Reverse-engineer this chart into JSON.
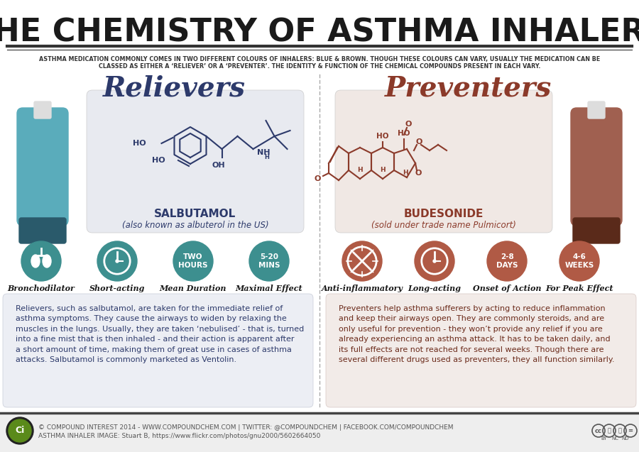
{
  "title": "THE CHEMISTRY OF ASTHMA INHALERS",
  "subtitle_line1": "ASTHMA MEDICATION COMMONLY COMES IN TWO DIFFERENT COLOURS OF INHALERS: BLUE & BROWN. THOUGH THESE COLOURS CAN VARY, USUALLY THE MEDICATION CAN BE",
  "subtitle_line2": "CLASSED AS EITHER A ‘RELIEVER’ OR A ‘PREVENTER’. THE IDENTITY & FUNCTION OF THE CHEMICAL COMPOUNDS PRESENT IN EACH VARY.",
  "bg_color": "#ffffff",
  "title_color": "#1a1a1a",
  "left_heading": "Relievers",
  "right_heading": "Preventers",
  "left_heading_color": "#2d3a6b",
  "right_heading_color": "#8b3a2a",
  "left_box_bg": "#e8eaf0",
  "right_box_bg": "#f0e8e4",
  "left_compound": "SALBUTAMOL",
  "left_compound_sub": "(also known as albuterol in the US)",
  "right_compound": "BUDESONIDE",
  "right_compound_sub": "(sold under trade name Pulmicort)",
  "left_compound_color": "#2d3a6b",
  "right_compound_color": "#8b3a2a",
  "left_icons": [
    "Bronchodilator",
    "Short-acting",
    "Mean Duration",
    "Maximal Effect"
  ],
  "left_icon_texts": [
    "",
    "",
    "TWO\nHOURS",
    "5-20\nMINS"
  ],
  "right_icons": [
    "Anti-inflammatory",
    "Long-acting",
    "Onset of Action",
    "For Peak Effect"
  ],
  "right_icon_texts": [
    "",
    "",
    "2-8\nDAYS",
    "4-6\nWEEKS"
  ],
  "left_icon_color": "#3d8f8f",
  "right_icon_color": "#b05a45",
  "left_desc": "Relievers, such as salbutamol, are taken for the immediate relief of\nasthma symptoms. They cause the airways to widen by relaxing the\nmuscles in the lungs. Usually, they are taken ‘nebulised’ - that is, turned\ninto a fine mist that is then inhaled - and their action is apparent after\na short amount of time, making them of great use in cases of asthma\nattacks. Salbutamol is commonly marketed as Ventolin.",
  "right_desc": "Preventers help asthma sufferers by acting to reduce inflammation\nand keep their airways open. They are commonly steroids, and are\nonly useful for prevention - they won’t provide any relief if you are\nalready experiencing an asthma attack. It has to be taken daily, and\nits full effects are not reached for several weeks. Though there are\nseveral different drugs used as preventers, they all function similarly.",
  "desc_box_color": "#eceef4",
  "right_desc_box_color": "#f2ebe8",
  "left_desc_color": "#2d3a6b",
  "right_desc_color": "#6b2a1a",
  "footer_text1": "© COMPOUND INTEREST 2014 - WWW.COMPOUNDCHEM.COM | TWITTER: @COMPOUNDCHEM | FACEBOOK.COM/COMPOUNDCHEM",
  "footer_text2": "ASTHMA INHALER IMAGE: Stuart B, https://www.flickr.com/photos/gnu2000/5602664050",
  "footer_bg": "#eeeeee",
  "footer_color": "#555555",
  "divider_color": "#555555",
  "inhaler_blue": "#5aacbb",
  "inhaler_brown": "#a06050"
}
